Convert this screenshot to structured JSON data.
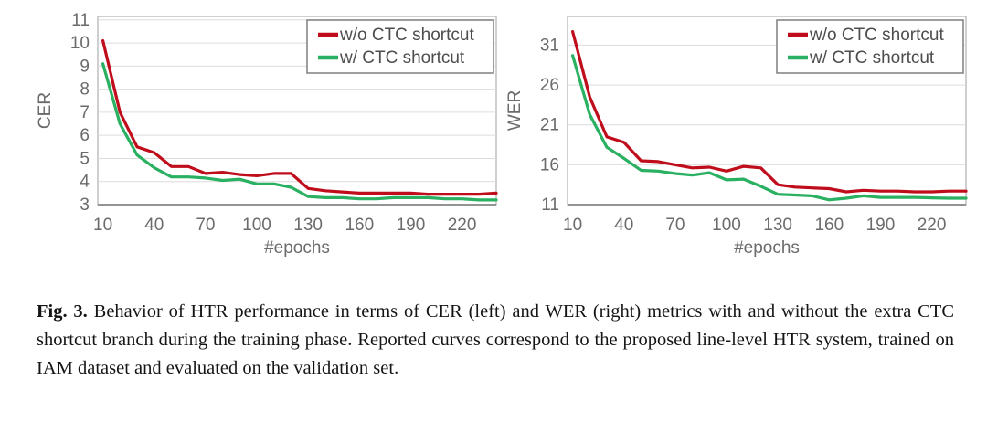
{
  "figure": {
    "caption_label": "Fig. 3.",
    "caption_text": "Behavior of HTR performance in terms of CER (left) and WER (right) metrics with and without the extra CTC shortcut branch during the training phase. Reported curves correspond to the proposed line-level HTR system, trained on IAM dataset and evaluated on the validation set."
  },
  "colors": {
    "without_ctc_line": "#c00d1c",
    "with_ctc_line": "#29b061",
    "tick_label": "#6b6b6b",
    "gridline": "#dcdcdc",
    "plot_border": "#bfbfbf",
    "legend_border": "#7f7f7f"
  },
  "chart_data": [
    {
      "type": "line",
      "title": "",
      "xlabel": "#epochs",
      "ylabel": "CER",
      "x": [
        10,
        20,
        30,
        40,
        50,
        60,
        70,
        80,
        90,
        100,
        110,
        120,
        130,
        140,
        150,
        160,
        170,
        180,
        190,
        200,
        210,
        220,
        230,
        240
      ],
      "xticks": [
        10,
        40,
        70,
        100,
        130,
        160,
        190,
        220
      ],
      "yticks": [
        3,
        4,
        5,
        6,
        7,
        8,
        9,
        10,
        11
      ],
      "xlim": [
        7,
        240
      ],
      "ylim": [
        3,
        11.15
      ],
      "grid": true,
      "legend_position": "top-right",
      "series": [
        {
          "name": "w/o CTC shortcut",
          "color": "#c00d1c",
          "values": [
            10.1,
            7.0,
            5.5,
            5.25,
            4.65,
            4.65,
            4.35,
            4.4,
            4.3,
            4.25,
            4.35,
            4.35,
            3.7,
            3.6,
            3.55,
            3.5,
            3.5,
            3.5,
            3.5,
            3.45,
            3.45,
            3.45,
            3.45,
            3.5
          ]
        },
        {
          "name": "w/ CTC shortcut",
          "color": "#29b061",
          "values": [
            9.1,
            6.5,
            5.15,
            4.6,
            4.2,
            4.2,
            4.15,
            4.05,
            4.1,
            3.9,
            3.9,
            3.75,
            3.35,
            3.3,
            3.3,
            3.25,
            3.25,
            3.3,
            3.3,
            3.3,
            3.25,
            3.25,
            3.2,
            3.2
          ]
        }
      ]
    },
    {
      "type": "line",
      "title": "",
      "xlabel": "#epochs",
      "ylabel": "WER",
      "x": [
        10,
        20,
        30,
        40,
        50,
        60,
        70,
        80,
        90,
        100,
        110,
        120,
        130,
        140,
        150,
        160,
        170,
        180,
        190,
        200,
        210,
        220,
        230,
        240
      ],
      "xticks": [
        10,
        40,
        70,
        100,
        130,
        160,
        190,
        220
      ],
      "yticks": [
        11,
        16,
        21,
        26,
        31
      ],
      "xlim": [
        7,
        240
      ],
      "ylim": [
        11,
        34.6
      ],
      "grid": true,
      "legend_position": "top-right",
      "series": [
        {
          "name": "w/o CTC shortcut",
          "color": "#c00d1c",
          "values": [
            32.7,
            24.5,
            19.5,
            18.8,
            16.5,
            16.4,
            16.0,
            15.6,
            15.7,
            15.2,
            15.8,
            15.6,
            13.5,
            13.2,
            13.1,
            13.0,
            12.6,
            12.8,
            12.7,
            12.7,
            12.6,
            12.6,
            12.7,
            12.7
          ]
        },
        {
          "name": "w/ CTC shortcut",
          "color": "#29b061",
          "values": [
            29.7,
            22.3,
            18.2,
            16.8,
            15.3,
            15.2,
            14.9,
            14.7,
            15.0,
            14.1,
            14.2,
            13.3,
            12.3,
            12.2,
            12.1,
            11.6,
            11.8,
            12.1,
            11.9,
            11.9,
            11.9,
            11.85,
            11.8,
            11.8
          ]
        }
      ]
    }
  ]
}
